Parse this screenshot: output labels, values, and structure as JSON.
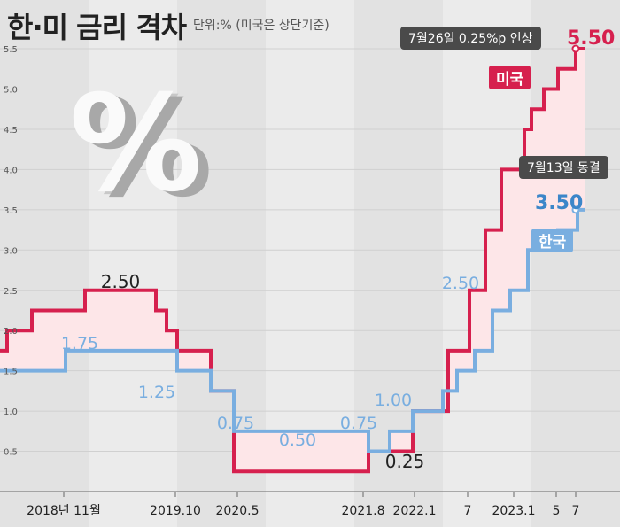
{
  "title": "한·미 금리 격차",
  "unit_note": "단위:% (미국은 상단기준)",
  "decor": {
    "percent_symbol": "%"
  },
  "annotations": {
    "us_event": "7월26일 0.25%p 인상",
    "kr_event": "7월13일 동결"
  },
  "labels": {
    "us": "미국",
    "kr": "한국"
  },
  "end_values": {
    "us": "5.50",
    "kr": "3.50"
  },
  "colors": {
    "us": "#d6204e",
    "kr": "#79aee0",
    "fill": "#fde6e8",
    "label_kr": "#3b86c9"
  },
  "chart_data": {
    "type": "line",
    "step": true,
    "ylim": [
      0,
      5.5
    ],
    "yticks": [
      "0.5",
      "1.0",
      "1.5",
      "2.0",
      "2.5",
      "3.0",
      "3.5",
      "4.0",
      "4.5",
      "5.0",
      "5.5"
    ],
    "xlabels": [
      "2018년 11월",
      "2019.10",
      "2020.5",
      "2021.8",
      "2022.1",
      "7",
      "2023.1",
      "5",
      "7"
    ],
    "series": [
      {
        "name": "미국",
        "steps": [
          {
            "x": 0,
            "y": 1.75
          },
          {
            "x": 1,
            "y": 2.0
          },
          {
            "x": 2,
            "y": 2.25
          },
          {
            "x": 3,
            "y": 2.5
          },
          {
            "x": 4,
            "y": 2.25
          },
          {
            "x": 5,
            "y": 2.0
          },
          {
            "x": 6,
            "y": 1.75
          },
          {
            "x": 7,
            "y": 1.25
          },
          {
            "x": 8,
            "y": 0.25
          },
          {
            "x": 9,
            "y": 0.5
          },
          {
            "x": 10,
            "y": 1.0
          },
          {
            "x": 11,
            "y": 1.75
          },
          {
            "x": 12,
            "y": 2.5
          },
          {
            "x": 13,
            "y": 3.25
          },
          {
            "x": 14,
            "y": 4.0
          },
          {
            "x": 15,
            "y": 4.5
          },
          {
            "x": 16,
            "y": 4.75
          },
          {
            "x": 17,
            "y": 5.0
          },
          {
            "x": 18,
            "y": 5.25
          },
          {
            "x": 19,
            "y": 5.5
          }
        ]
      },
      {
        "name": "한국",
        "steps": [
          {
            "x": 0,
            "y": 1.5
          },
          {
            "x": 1,
            "y": 1.75
          },
          {
            "x": 2,
            "y": 1.5
          },
          {
            "x": 3,
            "y": 1.25
          },
          {
            "x": 4,
            "y": 0.75
          },
          {
            "x": 5,
            "y": 0.5
          },
          {
            "x": 6,
            "y": 0.75
          },
          {
            "x": 7,
            "y": 1.0
          },
          {
            "x": 8,
            "y": 1.25
          },
          {
            "x": 9,
            "y": 1.5
          },
          {
            "x": 10,
            "y": 1.75
          },
          {
            "x": 11,
            "y": 2.25
          },
          {
            "x": 12,
            "y": 2.5
          },
          {
            "x": 13,
            "y": 3.0
          },
          {
            "x": 14,
            "y": 3.25
          },
          {
            "x": 15,
            "y": 3.5
          }
        ]
      }
    ],
    "value_labels": {
      "us": [
        "2.50",
        "0.25"
      ],
      "kr": [
        "1.75",
        "1.25",
        "0.75",
        "0.50",
        "0.75",
        "1.00",
        "2.50"
      ]
    }
  }
}
